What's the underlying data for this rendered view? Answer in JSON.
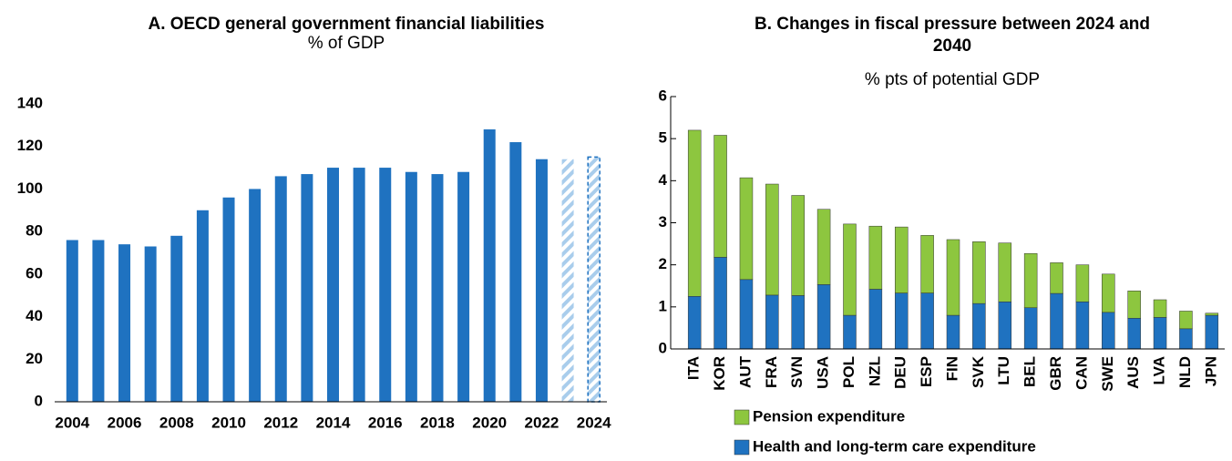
{
  "chart_data": [
    {
      "type": "bar",
      "title": "A. OECD general government financial liabilities",
      "subtitle": "% of GDP",
      "categories": [
        "2004",
        null,
        "2006",
        null,
        "2008",
        null,
        "2010",
        null,
        "2012",
        null,
        "2014",
        null,
        "2016",
        null,
        "2018",
        null,
        "2020",
        null,
        "2022",
        null,
        "2024"
      ],
      "values": [
        76,
        76,
        74,
        73,
        78,
        90,
        96,
        100,
        106,
        107,
        110,
        110,
        110,
        108,
        107,
        108,
        128,
        122,
        114,
        114,
        115
      ],
      "patterns": [
        "solid",
        "solid",
        "solid",
        "solid",
        "solid",
        "solid",
        "solid",
        "solid",
        "solid",
        "solid",
        "solid",
        "solid",
        "solid",
        "solid",
        "solid",
        "solid",
        "solid",
        "solid",
        "solid",
        "hatched",
        "hatched-dashed"
      ],
      "color": "#1f72c0",
      "hatch_color": "#a9cdec",
      "ylim": [
        0,
        140
      ],
      "yticks": [
        0,
        20,
        40,
        60,
        80,
        100,
        120,
        140
      ]
    },
    {
      "type": "stacked-bar",
      "title": "B. Changes in fiscal pressure between 2024 and 2040",
      "subtitle": "% pts of potential GDP",
      "categories": [
        "ITA",
        "KOR",
        "AUT",
        "FRA",
        "SVN",
        "USA",
        "POL",
        "NZL",
        "DEU",
        "ESP",
        "FIN",
        "SVK",
        "LTU",
        "BEL",
        "GBR",
        "CAN",
        "SWE",
        "AUS",
        "LVA",
        "NLD",
        "JPN"
      ],
      "series": [
        {
          "name": "Pension expenditure",
          "color": "#8dc63f",
          "values": [
            3.95,
            2.9,
            2.42,
            2.64,
            2.38,
            1.79,
            2.17,
            1.5,
            1.57,
            1.37,
            1.8,
            1.47,
            1.4,
            1.29,
            0.73,
            0.88,
            0.91,
            0.65,
            0.42,
            0.42,
            0.05
          ]
        },
        {
          "name": "Health and long-term care expenditure",
          "color": "#1f72c0",
          "values": [
            1.25,
            2.18,
            1.65,
            1.28,
            1.27,
            1.53,
            0.8,
            1.42,
            1.33,
            1.33,
            0.8,
            1.08,
            1.12,
            0.98,
            1.32,
            1.12,
            0.87,
            0.73,
            0.75,
            0.48,
            0.8
          ]
        }
      ],
      "ylim": [
        0,
        6
      ],
      "yticks": [
        0,
        1,
        2,
        3,
        4,
        5,
        6
      ],
      "legend": "bottom"
    }
  ]
}
